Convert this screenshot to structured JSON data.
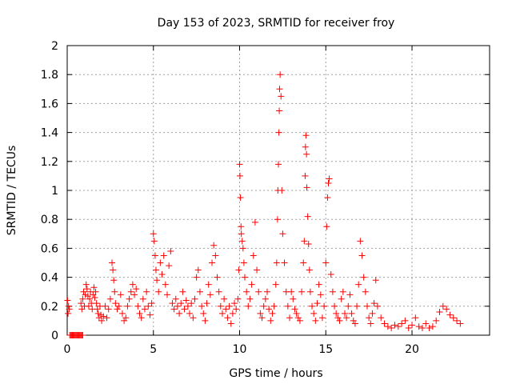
{
  "chart_data": {
    "type": "scatter",
    "title": "Day 153 of 2023, SRMTID for receiver froy",
    "xlabel": "GPS time / hours",
    "ylabel": "SRMTID / TECUs",
    "xlim": [
      0,
      24.5
    ],
    "ylim": [
      0,
      2
    ],
    "xticks": [
      0,
      5,
      10,
      15,
      20
    ],
    "xtick_labels": [
      "0",
      "5",
      "10",
      "15",
      "20"
    ],
    "yticks": [
      0,
      0.2,
      0.4,
      0.6,
      0.8,
      1,
      1.2,
      1.4,
      1.6,
      1.8,
      2
    ],
    "ytick_labels": [
      "0",
      "0.2",
      "0.4",
      "0.6",
      "0.8",
      "1",
      "1.2",
      "1.4",
      "1.6",
      "1.8",
      "2"
    ],
    "grid": true,
    "marker": "+",
    "color": "#ff0000",
    "series": [
      {
        "name": "SRMTID",
        "x": [
          0.02,
          0.05,
          0.08,
          0.12,
          0.15,
          0.2,
          0.25,
          0.3,
          0.35,
          0.4,
          0.45,
          0.5,
          0.55,
          0.6,
          0.65,
          0.7,
          0.75,
          0.8,
          0.85,
          0.9,
          0.8,
          0.85,
          0.9,
          0.95,
          1.0,
          1.05,
          1.1,
          1.15,
          1.2,
          1.25,
          1.3,
          1.35,
          1.4,
          1.45,
          1.5,
          1.55,
          1.6,
          1.65,
          1.7,
          1.75,
          1.8,
          1.85,
          1.9,
          1.95,
          2.0,
          2.1,
          2.2,
          2.3,
          2.4,
          2.5,
          2.6,
          2.65,
          2.7,
          2.75,
          2.8,
          2.9,
          3.0,
          3.1,
          3.2,
          3.3,
          3.4,
          3.5,
          3.6,
          3.7,
          3.8,
          3.9,
          4.0,
          4.1,
          4.2,
          4.3,
          4.4,
          4.5,
          4.6,
          4.7,
          4.8,
          4.9,
          5.0,
          5.05,
          5.1,
          5.15,
          5.2,
          5.3,
          5.4,
          5.5,
          5.6,
          5.7,
          5.8,
          5.9,
          6.0,
          6.1,
          6.2,
          6.3,
          6.4,
          6.5,
          6.6,
          6.7,
          6.8,
          6.9,
          7.0,
          7.1,
          7.2,
          7.3,
          7.4,
          7.5,
          7.6,
          7.7,
          7.8,
          7.9,
          8.0,
          8.1,
          8.2,
          8.3,
          8.4,
          8.5,
          8.6,
          8.7,
          8.8,
          8.9,
          9.0,
          9.1,
          9.2,
          9.3,
          9.4,
          9.5,
          9.6,
          9.7,
          9.8,
          9.9,
          9.95,
          10.0,
          10.02,
          10.05,
          10.08,
          10.1,
          10.15,
          10.2,
          10.25,
          10.3,
          10.4,
          10.5,
          10.6,
          10.7,
          10.8,
          10.9,
          11.0,
          11.1,
          11.2,
          11.3,
          11.4,
          11.5,
          11.6,
          11.7,
          11.8,
          11.9,
          12.0,
          12.1,
          12.15,
          12.2,
          12.22,
          12.25,
          12.28,
          12.3,
          12.32,
          12.35,
          12.4,
          12.45,
          12.5,
          12.6,
          12.7,
          12.8,
          12.9,
          13.0,
          13.1,
          13.2,
          13.3,
          13.4,
          13.5,
          13.6,
          13.7,
          13.75,
          13.8,
          13.82,
          13.85,
          13.88,
          13.9,
          13.95,
          14.0,
          14.05,
          14.1,
          14.2,
          14.3,
          14.4,
          14.5,
          14.6,
          14.7,
          14.8,
          14.9,
          15.0,
          15.05,
          15.1,
          15.15,
          15.2,
          15.3,
          15.4,
          15.5,
          15.6,
          15.7,
          15.8,
          15.9,
          16.0,
          16.1,
          16.2,
          16.3,
          16.4,
          16.5,
          16.6,
          16.7,
          16.8,
          16.9,
          17.0,
          17.1,
          17.2,
          17.3,
          17.4,
          17.5,
          17.6,
          17.7,
          17.8,
          17.9,
          18.0,
          18.2,
          18.4,
          18.6,
          18.8,
          19.0,
          19.2,
          19.4,
          19.6,
          19.8,
          20.0,
          20.2,
          20.4,
          20.6,
          20.8,
          21.0,
          21.2,
          21.4,
          21.6,
          21.8,
          22.0,
          22.2,
          22.4,
          22.6,
          22.8
        ],
        "y": [
          0.24,
          0.15,
          0.2,
          0.18,
          0.0,
          0.0,
          0.0,
          0.0,
          0.0,
          0.0,
          0.0,
          0.0,
          0.0,
          0.0,
          0.0,
          0.0,
          0.0,
          0.0,
          0.0,
          0.0,
          0.22,
          0.18,
          0.25,
          0.3,
          0.2,
          0.28,
          0.35,
          0.32,
          0.27,
          0.2,
          0.25,
          0.3,
          0.22,
          0.18,
          0.28,
          0.33,
          0.26,
          0.3,
          0.22,
          0.18,
          0.15,
          0.12,
          0.2,
          0.14,
          0.1,
          0.13,
          0.2,
          0.12,
          0.18,
          0.25,
          0.5,
          0.45,
          0.38,
          0.3,
          0.22,
          0.18,
          0.2,
          0.28,
          0.15,
          0.1,
          0.12,
          0.2,
          0.25,
          0.3,
          0.35,
          0.28,
          0.32,
          0.2,
          0.15,
          0.12,
          0.25,
          0.18,
          0.3,
          0.2,
          0.14,
          0.22,
          0.7,
          0.65,
          0.55,
          0.45,
          0.38,
          0.3,
          0.5,
          0.42,
          0.55,
          0.35,
          0.28,
          0.48,
          0.58,
          0.22,
          0.18,
          0.25,
          0.2,
          0.15,
          0.22,
          0.3,
          0.18,
          0.24,
          0.2,
          0.15,
          0.22,
          0.12,
          0.25,
          0.4,
          0.45,
          0.3,
          0.2,
          0.15,
          0.1,
          0.22,
          0.35,
          0.28,
          0.5,
          0.62,
          0.55,
          0.4,
          0.3,
          0.2,
          0.15,
          0.25,
          0.18,
          0.12,
          0.2,
          0.08,
          0.15,
          0.22,
          0.18,
          0.25,
          0.45,
          1.18,
          1.1,
          0.95,
          0.75,
          0.7,
          0.65,
          0.6,
          0.5,
          0.4,
          0.3,
          0.2,
          0.25,
          0.35,
          0.55,
          0.78,
          0.45,
          0.3,
          0.15,
          0.12,
          0.2,
          0.25,
          0.3,
          0.18,
          0.1,
          0.15,
          0.2,
          0.35,
          0.5,
          0.8,
          1.0,
          1.18,
          1.4,
          1.55,
          1.7,
          1.8,
          1.65,
          1.0,
          0.7,
          0.5,
          0.3,
          0.2,
          0.12,
          0.3,
          0.25,
          0.18,
          0.15,
          0.12,
          0.1,
          0.3,
          0.5,
          0.65,
          1.1,
          1.3,
          1.38,
          1.25,
          1.02,
          0.82,
          0.63,
          0.45,
          0.3,
          0.2,
          0.15,
          0.1,
          0.22,
          0.35,
          0.28,
          0.12,
          0.2,
          0.5,
          0.75,
          0.95,
          1.05,
          1.08,
          0.42,
          0.3,
          0.2,
          0.15,
          0.12,
          0.1,
          0.25,
          0.3,
          0.15,
          0.12,
          0.2,
          0.28,
          0.15,
          0.1,
          0.08,
          0.2,
          0.35,
          0.65,
          0.55,
          0.4,
          0.3,
          0.2,
          0.12,
          0.08,
          0.15,
          0.22,
          0.38,
          0.2,
          0.12,
          0.08,
          0.06,
          0.05,
          0.07,
          0.06,
          0.08,
          0.1,
          0.05,
          0.07,
          0.12,
          0.06,
          0.05,
          0.08,
          0.05,
          0.06,
          0.1,
          0.16,
          0.2,
          0.18,
          0.14,
          0.12,
          0.1,
          0.08
        ]
      }
    ]
  }
}
